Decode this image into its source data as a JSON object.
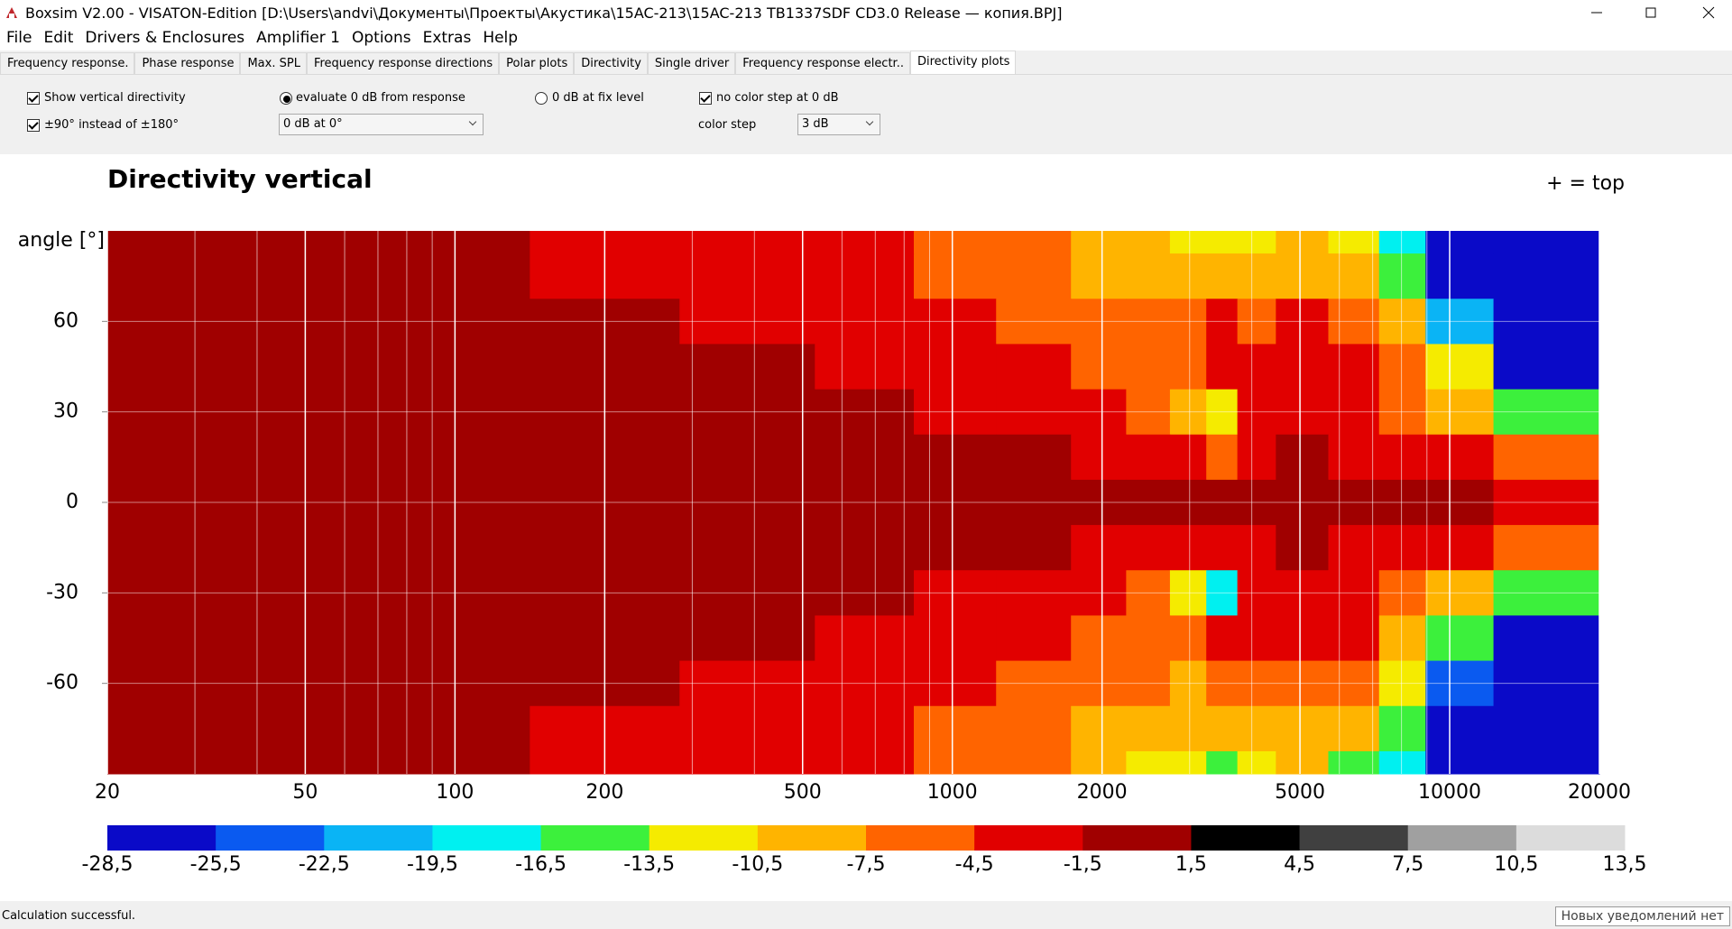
{
  "window": {
    "title": "Boxsim V2.00 - VISATON-Edition [D:\\Users\\andvi\\Документы\\Проекты\\Акустика\\15AC-213\\15AC-213 TB1337SDF CD3.0 Release — копия.BPJ]"
  },
  "menu": [
    "File",
    "Edit",
    "Drivers & Enclosures",
    "Amplifier 1",
    "Options",
    "Extras",
    "Help"
  ],
  "tabs": [
    "Frequency response.",
    "Phase response",
    "Max. SPL",
    "Frequency response directions",
    "Polar plots",
    "Directivity",
    "Single driver",
    "Frequency response electr..",
    "Directivity plots"
  ],
  "selected_tab": 8,
  "controls": {
    "show_vertical": {
      "label": "Show vertical directivity",
      "checked": true
    },
    "range90": {
      "label": "±90° instead of ±180°",
      "checked": true
    },
    "eval_response": {
      "label": "evaluate 0 dB from response",
      "checked": true
    },
    "reference": "0 dB at 0°",
    "fix_level": {
      "label": "0 dB at fix level",
      "checked": false
    },
    "no_color_step": {
      "label": "no color step at 0 dB",
      "checked": true
    },
    "color_step_label": "color step",
    "color_step": "3 dB"
  },
  "chart_data": {
    "type": "heatmap",
    "title": "Directivity vertical",
    "annotation": "+ = top",
    "ylabel": "angle [°]",
    "xscale": "log",
    "x": [
      20,
      50,
      100,
      200,
      400,
      700,
      1000,
      1500,
      2000,
      2500,
      3000,
      3500,
      4000,
      5000,
      6500,
      8000,
      10000,
      15000
    ],
    "y": [
      90,
      75,
      60,
      45,
      30,
      15,
      0,
      -15,
      -30,
      -45,
      -60,
      -75,
      -90
    ],
    "values": [
      [
        0,
        -1,
        -1,
        -2,
        -3,
        -4,
        -6,
        -7,
        -9,
        -10,
        -12,
        -13,
        -11,
        -10,
        -13,
        -18,
        -28,
        -28
      ],
      [
        0,
        -1,
        -1,
        -2,
        -3,
        -4,
        -5,
        -7,
        -8,
        -9,
        -9,
        -8,
        -9,
        -8,
        -9,
        -15,
        -27,
        -28
      ],
      [
        0,
        0,
        -1,
        -1,
        -2,
        -3,
        -4,
        -5,
        -6,
        -7,
        -7,
        -4,
        -5,
        -4,
        -6,
        -10,
        -22,
        -28
      ],
      [
        0,
        0,
        0,
        -1,
        -1,
        -2,
        -2,
        -4,
        -5,
        -5,
        -6,
        -3,
        -4,
        -3,
        -3,
        -7,
        -13,
        -27
      ],
      [
        0,
        0,
        0,
        0,
        -1,
        -1,
        -2,
        -3,
        -4,
        -5,
        -10,
        -12,
        -3,
        -4,
        -2,
        -5,
        -9,
        -14
      ],
      [
        0,
        0,
        0,
        0,
        0,
        -1,
        -1,
        -1,
        -2,
        -2,
        -3,
        -5,
        -2,
        -1,
        -2,
        -3,
        -4,
        -5
      ],
      [
        0,
        0,
        0,
        0,
        0,
        0,
        0,
        0,
        0,
        0,
        -1,
        -1,
        0,
        0,
        -1,
        -1,
        -1,
        -2
      ],
      [
        0,
        0,
        0,
        0,
        0,
        -1,
        -1,
        -1,
        -2,
        -2,
        -3,
        -4,
        -2,
        -1,
        -2,
        -3,
        -4,
        -6
      ],
      [
        0,
        0,
        0,
        0,
        -1,
        -1,
        -2,
        -3,
        -4,
        -5,
        -11,
        -17,
        -3,
        -4,
        -3,
        -6,
        -10,
        -16
      ],
      [
        0,
        0,
        0,
        -1,
        -1,
        -2,
        -3,
        -4,
        -5,
        -6,
        -6,
        -4,
        -4,
        -3,
        -4,
        -8,
        -15,
        -27
      ],
      [
        0,
        0,
        -1,
        -1,
        -2,
        -3,
        -4,
        -5,
        -6,
        -7,
        -8,
        -5,
        -5,
        -5,
        -7,
        -12,
        -24,
        -28
      ],
      [
        0,
        -1,
        -1,
        -2,
        -3,
        -4,
        -5,
        -7,
        -8,
        -9,
        -10,
        -9,
        -9,
        -8,
        -10,
        -16,
        -27,
        -28
      ],
      [
        0,
        -1,
        -1,
        -2,
        -3,
        -4,
        -6,
        -7,
        -9,
        -11,
        -13,
        -14,
        -12,
        -10,
        -14,
        -19,
        -28,
        -28
      ]
    ],
    "xlim": [
      20,
      20000
    ],
    "ylim": [
      -90,
      90
    ],
    "xticks": [
      20,
      50,
      100,
      200,
      500,
      1000,
      2000,
      5000,
      10000,
      20000
    ],
    "yticks": [
      60,
      30,
      0,
      -30,
      -60
    ],
    "grid": true,
    "colorbar": {
      "ticks": [
        {
          "value": -28.5,
          "label": "-28,5"
        },
        {
          "value": -25.5,
          "label": "-25,5"
        },
        {
          "value": -22.5,
          "label": "-22,5"
        },
        {
          "value": -19.5,
          "label": "-19,5"
        },
        {
          "value": -16.5,
          "label": "-16,5"
        },
        {
          "value": -13.5,
          "label": "-13,5"
        },
        {
          "value": -10.5,
          "label": "-10,5"
        },
        {
          "value": -7.5,
          "label": "-7,5"
        },
        {
          "value": -4.5,
          "label": "-4,5"
        },
        {
          "value": -1.5,
          "label": "-1,5"
        },
        {
          "value": 1.5,
          "label": "1,5"
        },
        {
          "value": 4.5,
          "label": "4,5"
        },
        {
          "value": 7.5,
          "label": "7,5"
        },
        {
          "value": 10.5,
          "label": "10,5"
        },
        {
          "value": 13.5,
          "label": "13,5"
        }
      ],
      "colors": [
        "#0a0ac8",
        "#0a5af0",
        "#0ab4f5",
        "#00f0f0",
        "#3cf03c",
        "#f5eb00",
        "#ffb400",
        "#ff6400",
        "#e10000",
        "#a00000",
        "#000000",
        "#404040",
        "#a0a0a0",
        "#dcdcdc"
      ]
    }
  },
  "status": {
    "message": "Calculation successful.",
    "notifications": "Новых уведомлений нет"
  }
}
